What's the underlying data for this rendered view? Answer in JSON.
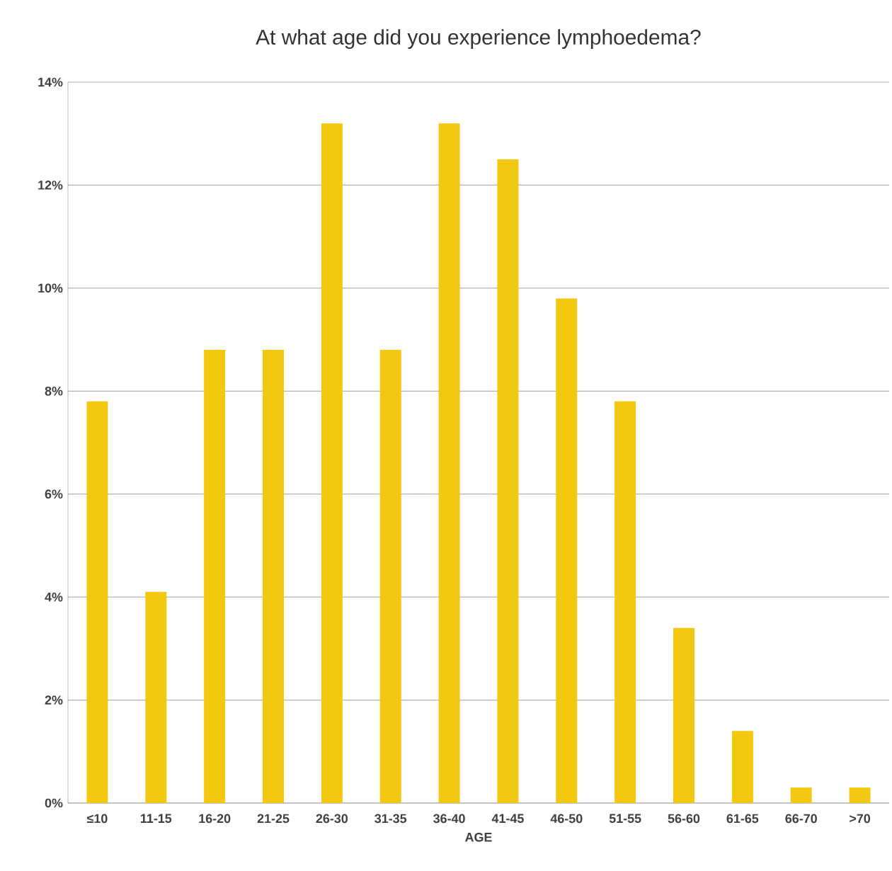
{
  "chart_data": {
    "type": "bar",
    "title": "At what age did you experience lymphoedema?",
    "xlabel": "AGE",
    "categories": [
      "≤10",
      "11-15",
      "16-20",
      "21-25",
      "26-30",
      "31-35",
      "36-40",
      "41-45",
      "46-50",
      "51-55",
      "56-60",
      "61-65",
      "66-70",
      ">70"
    ],
    "values": [
      7.8,
      4.1,
      8.8,
      8.8,
      13.2,
      8.8,
      13.2,
      12.5,
      9.8,
      7.8,
      3.4,
      1.4,
      0.3,
      0.3
    ],
    "color": "#f2c811",
    "ylim": [
      0,
      14
    ],
    "yticks": [
      {
        "value": 0,
        "label": "0%"
      },
      {
        "value": 2,
        "label": "2%"
      },
      {
        "value": 4,
        "label": "4%"
      },
      {
        "value": 6,
        "label": "6%"
      },
      {
        "value": 8,
        "label": "8%"
      },
      {
        "value": 10,
        "label": "10%"
      },
      {
        "value": 12,
        "label": "12%"
      },
      {
        "value": 14,
        "label": "14%"
      }
    ],
    "grid": "y"
  }
}
